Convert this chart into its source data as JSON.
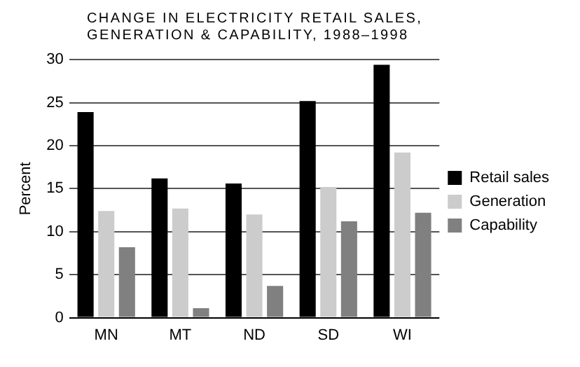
{
  "chart_data": {
    "type": "bar",
    "title": "CHANGE IN ELECTRICITY RETAIL SALES, GENERATION & CAPABILITY, 1988–1998",
    "ylabel": "Percent",
    "categories": [
      "MN",
      "MT",
      "ND",
      "SD",
      "WI"
    ],
    "series": [
      {
        "name": "Retail sales",
        "color": "#000000",
        "values": [
          23.9,
          16.2,
          15.6,
          25.2,
          29.4
        ]
      },
      {
        "name": "Generation",
        "color": "#cccccc",
        "values": [
          12.4,
          12.7,
          12.0,
          15.2,
          19.2
        ]
      },
      {
        "name": "Capability",
        "color": "#808080",
        "values": [
          8.2,
          1.1,
          3.7,
          11.2,
          12.2
        ]
      }
    ],
    "ylim": [
      0,
      30
    ],
    "yticks": [
      0,
      5,
      10,
      15,
      20,
      25,
      30
    ],
    "grid": "y",
    "legend": "right"
  }
}
